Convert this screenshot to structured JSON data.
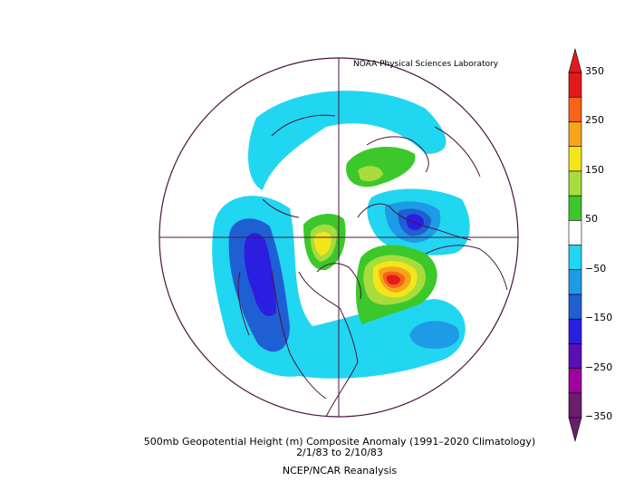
{
  "credit": "NOAA Physical Sciences Laboratory",
  "title_line1": "500mb Geopotential Height (m) Composite Anomaly (1991–2020 Climatology)",
  "title_line2": "2/1/83  to 2/10/83",
  "title_line3": "NCEP/NCAR Reanalysis",
  "colorbar": {
    "tick_labels": [
      "350",
      "250",
      "150",
      "50",
      "−50",
      "−150",
      "−250",
      "−350"
    ],
    "levels": [
      -350,
      -300,
      -250,
      -200,
      -150,
      -100,
      -50,
      50,
      100,
      150,
      200,
      250,
      300,
      350
    ],
    "colors": [
      "#6b1e6b",
      "#a000a0",
      "#5a0fb4",
      "#2c1ee0",
      "#1f5fd4",
      "#1e9be6",
      "#21d6f0",
      "#ffffff",
      "#3cc82a",
      "#a8dc3c",
      "#f2e61a",
      "#f9a51c",
      "#f5641a",
      "#e41a1a"
    ]
  },
  "map": {
    "projection": "north-polar stereographic",
    "line_color": "#4a1440"
  }
}
